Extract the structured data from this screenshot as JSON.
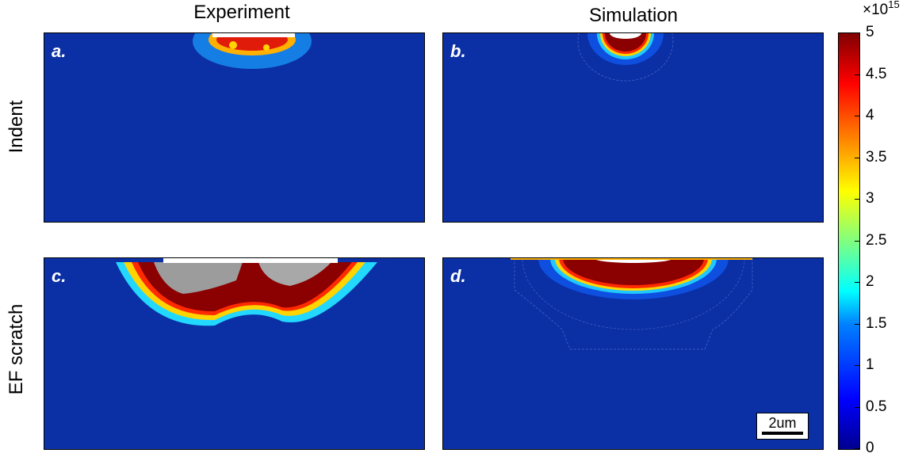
{
  "titles": {
    "experiment": "Experiment",
    "simulation": "Simulation"
  },
  "rows": {
    "top": "Indent",
    "bottom": "EF scratch"
  },
  "panels": {
    "a": "a.",
    "b": "b.",
    "c": "c.",
    "d": "d."
  },
  "scale_bar": "2um",
  "colorbar": {
    "exponent_prefix": "×10",
    "exponent_power": "15",
    "ticks": [
      "5",
      "4.5",
      "4",
      "3.5",
      "3",
      "2.5",
      "2",
      "1.5",
      "1",
      "0.5",
      "0"
    ],
    "range": [
      0,
      5
    ],
    "colormap": "jet"
  },
  "colors": {
    "background_field": "#0b2fa4",
    "high": "#8b0000",
    "frame": "#000000"
  },
  "chart_data": {
    "type": "heatmap",
    "colormap": "jet",
    "zlim": [
      0,
      5000000000000000.0
    ],
    "colorbar_ticks": [
      0,
      0.5,
      1,
      1.5,
      2,
      2.5,
      3,
      3.5,
      4,
      4.5,
      5
    ],
    "columns": [
      "Experiment",
      "Simulation"
    ],
    "rows": [
      "Indent",
      "EF scratch"
    ],
    "panels": [
      "a.",
      "b.",
      "c.",
      "d."
    ]
  }
}
